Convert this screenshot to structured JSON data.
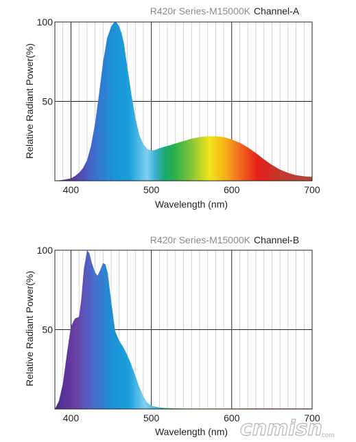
{
  "chart_data": [
    {
      "type": "area",
      "title_series": "R420r Series-M15000K",
      "title_channel": "Channel-A",
      "xlabel": "Wavelength (nm)",
      "ylabel": "Relative Radiant Power(%)",
      "xlim": [
        380,
        700
      ],
      "ylim": [
        0,
        100
      ],
      "x_ticks": [
        "400",
        "500",
        "600",
        "700"
      ],
      "y_ticks": [
        "50",
        "100"
      ],
      "grid": true,
      "series": [
        {
          "x": [
            380,
            390,
            400,
            405,
            410,
            415,
            420,
            425,
            430,
            435,
            440,
            445,
            450,
            453,
            456,
            458,
            460,
            463,
            466,
            470,
            475,
            480,
            485,
            490,
            495,
            500,
            505,
            510,
            520,
            530,
            540,
            550,
            560,
            570,
            580,
            590,
            600,
            610,
            620,
            630,
            640,
            650,
            660,
            670,
            680,
            690,
            700
          ],
          "y": [
            0,
            0.5,
            1.5,
            3,
            5,
            8,
            13,
            22,
            36,
            55,
            75,
            90,
            97,
            99.5,
            100,
            99,
            97,
            93,
            86,
            72,
            55,
            40,
            29,
            23,
            20,
            19,
            19.5,
            20.5,
            22,
            23.5,
            25,
            26.5,
            27.5,
            28,
            28,
            27.5,
            26,
            24,
            21,
            17.5,
            13.5,
            10,
            7,
            5,
            3.5,
            2.8,
            2.5
          ]
        }
      ]
    },
    {
      "type": "area",
      "title_series": "R420r Series-M15000K",
      "title_channel": "Channel-B",
      "xlabel": "Wavelength (nm)",
      "ylabel": "Relative Radiant Power(%)",
      "xlim": [
        380,
        700
      ],
      "ylim": [
        0,
        100
      ],
      "x_ticks": [
        "400",
        "500",
        "600",
        "700"
      ],
      "y_ticks": [
        "50",
        "100"
      ],
      "grid": true,
      "series": [
        {
          "x": [
            380,
            385,
            390,
            395,
            400,
            405,
            410,
            413,
            416,
            420,
            423,
            426,
            430,
            433,
            436,
            440,
            443,
            446,
            450,
            455,
            460,
            465,
            470,
            475,
            480,
            485,
            490,
            495,
            500,
            510,
            520,
            550,
            600,
            650,
            700
          ],
          "y": [
            0,
            5,
            16,
            35,
            52,
            57,
            58,
            70,
            88,
            100,
            98,
            92,
            86,
            84,
            87,
            92,
            91,
            85,
            68,
            49,
            43,
            39,
            34,
            28,
            21,
            14,
            8,
            4,
            2,
            1,
            0.5,
            0.3,
            0.3,
            0.3,
            0.3
          ]
        }
      ]
    }
  ],
  "watermark": {
    "text": "cnmisn",
    "small": ".com"
  }
}
